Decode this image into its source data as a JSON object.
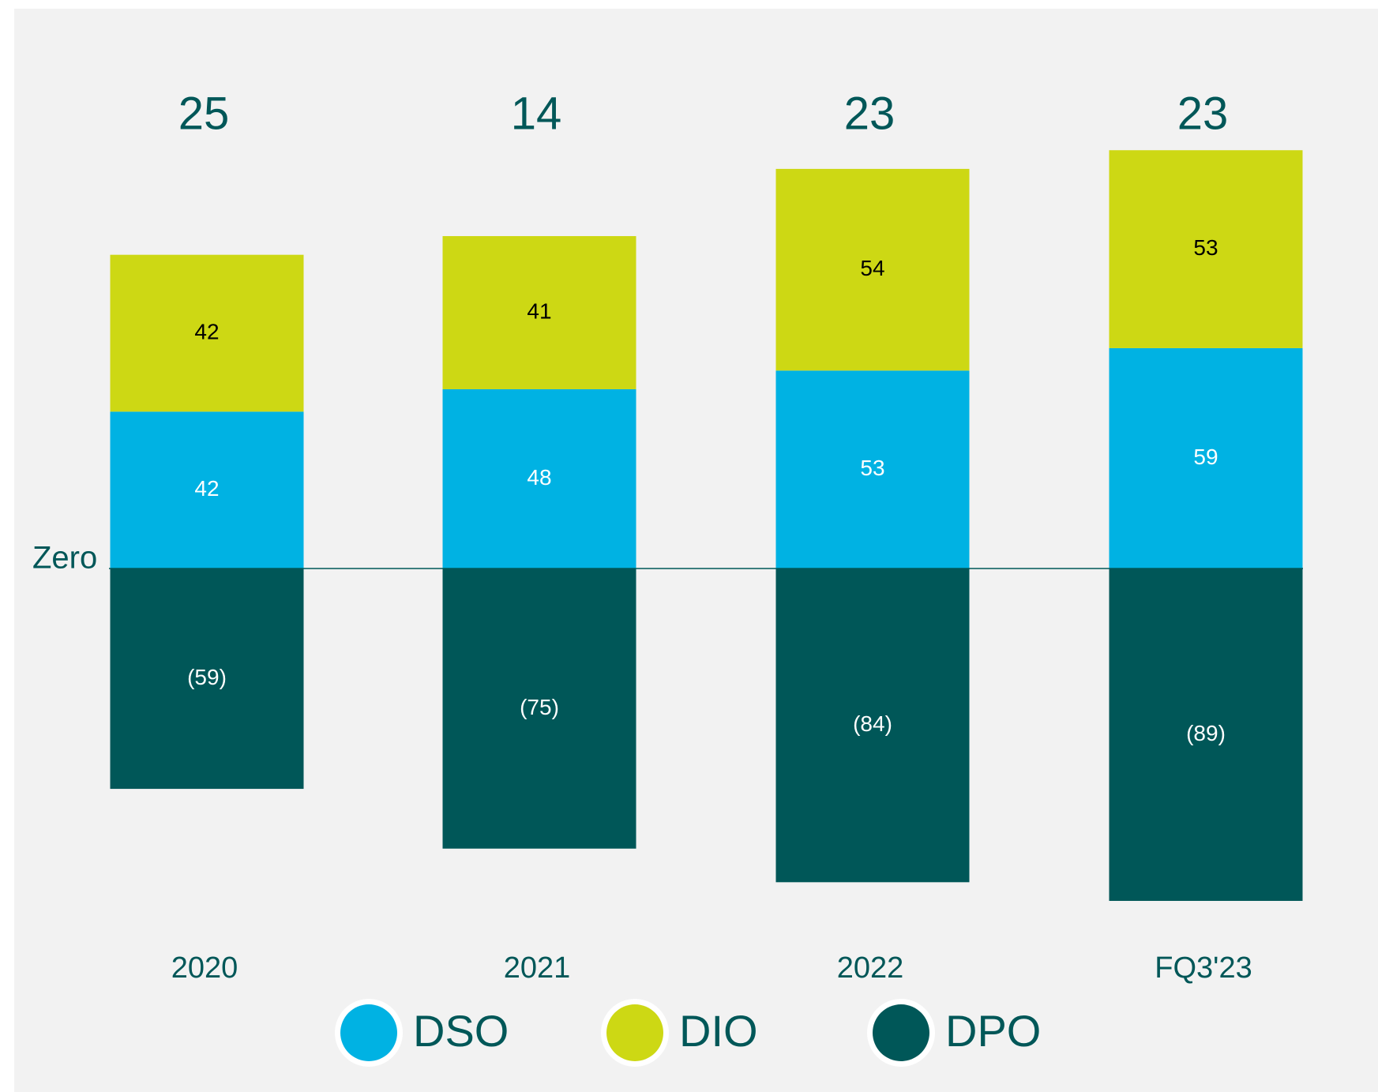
{
  "chart_data": {
    "type": "bar",
    "stacked": true,
    "categories": [
      "2020",
      "2021",
      "2022",
      "FQ3'23"
    ],
    "series": [
      {
        "name": "DSO",
        "color": "#00b2e3",
        "values": [
          42,
          48,
          53,
          59
        ]
      },
      {
        "name": "DIO",
        "color": "#cdd814",
        "values": [
          42,
          41,
          54,
          53
        ]
      },
      {
        "name": "DPO",
        "color": "#005758",
        "values": [
          -59,
          -75,
          -84,
          -89
        ],
        "value_labels": [
          "(59)",
          "(75)",
          "(84)",
          "(89)"
        ]
      }
    ],
    "totals": [
      25,
      14,
      23,
      23
    ],
    "annotation": "Zero"
  }
}
